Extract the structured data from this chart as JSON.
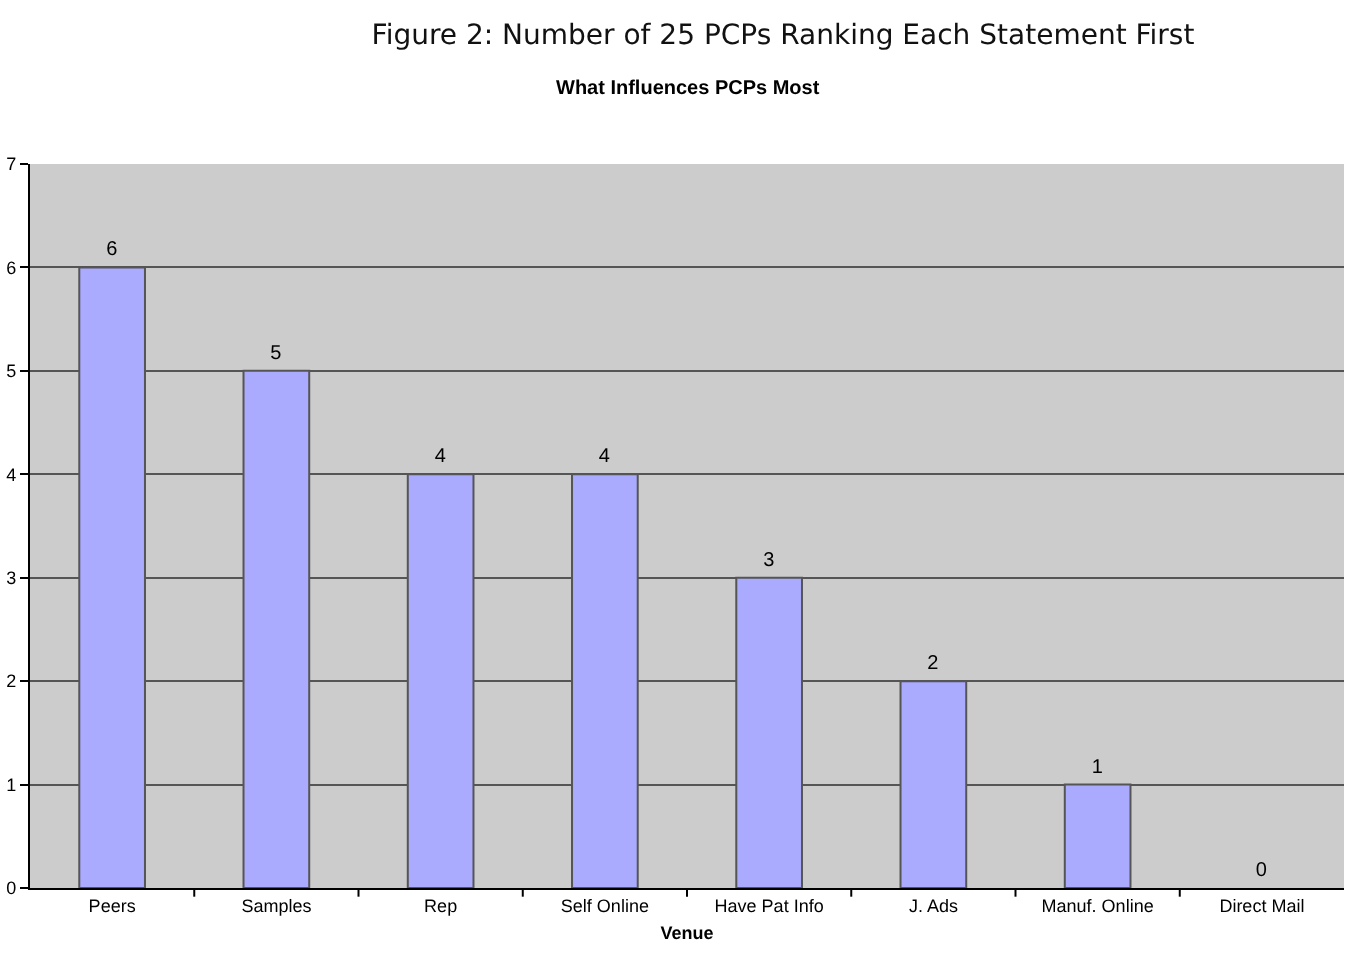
{
  "chart_data": {
    "type": "bar",
    "title": "Figure 2: Number of 25 PCPs Ranking Each Statement First",
    "subtitle": "What Influences PCPs Most",
    "xlabel": "Venue",
    "categories": [
      "Peers",
      "Samples",
      "Rep",
      "Self Online",
      "Have Pat Info",
      "J. Ads",
      "Manuf. Online",
      "Direct Mail"
    ],
    "values": [
      6,
      5,
      4,
      4,
      3,
      2,
      1,
      0
    ],
    "color": "#aaaaff",
    "ylim": [
      0,
      7
    ],
    "yticks": [
      0,
      1,
      2,
      3,
      4,
      5,
      6,
      7
    ],
    "grid": "y",
    "data_labels": true
  }
}
